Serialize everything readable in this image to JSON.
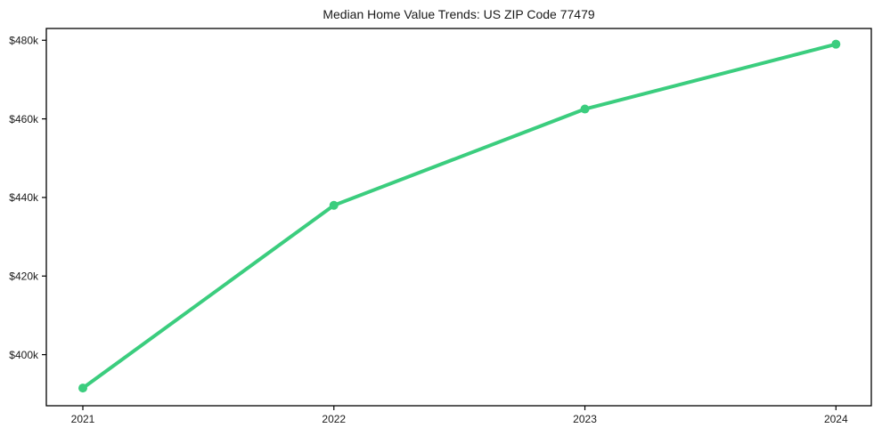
{
  "chart_data": {
    "type": "line",
    "title": "Median Home Value Trends: US ZIP Code 77479",
    "categories": [
      "2021",
      "2022",
      "2023",
      "2024"
    ],
    "series": [
      {
        "name": "Median Home Value",
        "values": [
          391500,
          438000,
          462500,
          479000
        ]
      }
    ],
    "xlabel": "",
    "ylabel": "",
    "ylim": [
      387000,
      483000
    ],
    "y_ticks": {
      "values": [
        400000,
        420000,
        440000,
        460000,
        480000
      ],
      "labels": [
        "$400k",
        "$420k",
        "$440k",
        "$460k",
        "$480k"
      ]
    },
    "grid": false,
    "legend": "none",
    "line_color": "#3bcd7e",
    "marker": "circle",
    "frame_color": "#000000",
    "text_color": "#1a1a1a",
    "background": "#ffffff"
  }
}
